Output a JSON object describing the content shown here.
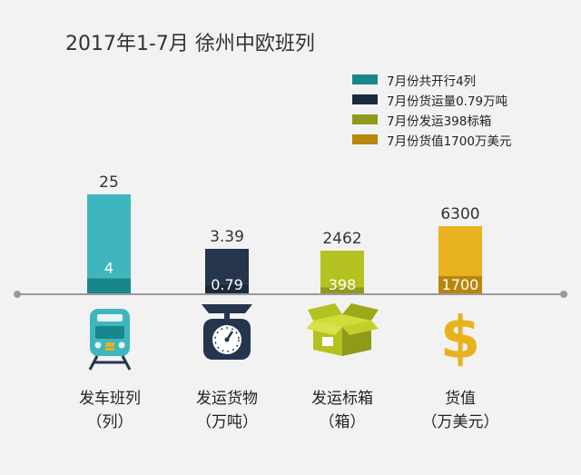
{
  "title": "2017年1-7月 徐州中欧班列",
  "colors": {
    "background": "#f2f2f2",
    "axis": "#9a9a9a",
    "upper": [
      "#3fb6bd",
      "#25354d",
      "#b3c21f",
      "#e8b21e"
    ],
    "lower": [
      "#17878c",
      "#1c2a3d",
      "#8e9a18",
      "#b8860b"
    ]
  },
  "legend": [
    {
      "label": "7月份共开行4列",
      "color": "#17878c"
    },
    {
      "label": "7月份货运量0.79万吨",
      "color": "#1c2a3d"
    },
    {
      "label": "7月份发运398标箱",
      "color": "#8e9a18"
    },
    {
      "label": "7月份货值1700万美元",
      "color": "#b8860b"
    }
  ],
  "categories": [
    {
      "name": "发车班列",
      "unit": "（列）",
      "icon": "train-icon"
    },
    {
      "name": "发运货物",
      "unit": "（万吨）",
      "icon": "scale-icon"
    },
    {
      "name": "发运标箱",
      "unit": "（箱）",
      "icon": "box-icon"
    },
    {
      "name": "货值",
      "unit": "（万美元）",
      "icon": "dollar-icon"
    }
  ],
  "chart_data": {
    "type": "bar",
    "title": "2017年1-7月 徐州中欧班列",
    "categories": [
      "发车班列",
      "发运货物",
      "发运标箱",
      "货值"
    ],
    "series": [
      {
        "name": "2017年1-7月",
        "values": [
          25,
          3.39,
          2462,
          6300
        ]
      },
      {
        "name": "7月份",
        "values": [
          4,
          0.79,
          398,
          1700
        ]
      }
    ],
    "independent_scales": true,
    "grid": false,
    "legend_position": "top-right"
  }
}
